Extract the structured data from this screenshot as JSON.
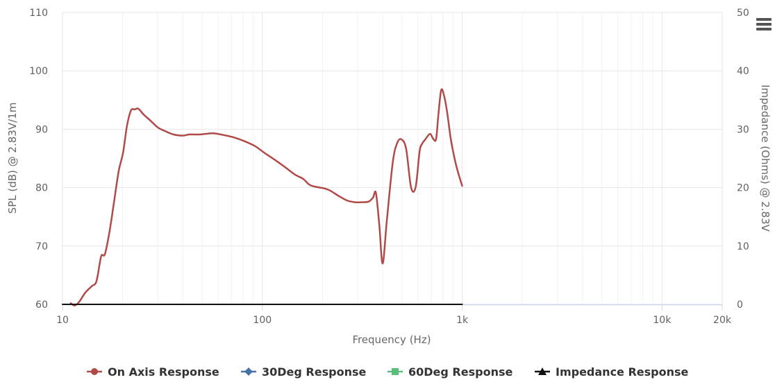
{
  "chart_data": {
    "type": "line",
    "xlabel": "Frequency (Hz)",
    "ylabel": "SPL (dB) @ 2.83V/1m",
    "y2label": "Impedance (Ohms) @ 2.83V",
    "xscale": "log",
    "xlim": [
      10,
      20000
    ],
    "ylim": [
      60,
      110
    ],
    "y2lim": [
      0,
      50
    ],
    "grid": true,
    "legend_position": "bottom-center",
    "x_ticks": [
      {
        "value": 10,
        "label": "10"
      },
      {
        "value": 100,
        "label": "100"
      },
      {
        "value": 1000,
        "label": "1k"
      },
      {
        "value": 10000,
        "label": "10k"
      },
      {
        "value": 20000,
        "label": "20k"
      }
    ],
    "y_ticks": [
      {
        "value": 60,
        "label": "60"
      },
      {
        "value": 70,
        "label": "70"
      },
      {
        "value": 80,
        "label": "80"
      },
      {
        "value": 90,
        "label": "90"
      },
      {
        "value": 100,
        "label": "100"
      },
      {
        "value": 110,
        "label": "110"
      }
    ],
    "y2_ticks": [
      {
        "value": 0,
        "label": "0"
      },
      {
        "value": 10,
        "label": "10"
      },
      {
        "value": 20,
        "label": "20"
      },
      {
        "value": 30,
        "label": "30"
      },
      {
        "value": 40,
        "label": "40"
      },
      {
        "value": 50,
        "label": "50"
      }
    ],
    "series": [
      {
        "name": "On Axis Response",
        "color": "#b04a48",
        "marker": "circle",
        "axis": "left",
        "x": [
          11,
          11.5,
          12.1,
          13,
          14,
          14.8,
          15.6,
          16.3,
          17.2,
          18.1,
          19.1,
          20.1,
          21,
          22,
          23,
          24,
          25.5,
          27.5,
          30,
          33,
          36,
          40,
          43,
          48,
          52,
          57,
          64,
          72,
          82,
          92,
          102,
          115,
          130,
          146,
          160,
          172,
          187,
          202,
          218,
          240,
          265,
          290,
          315,
          340,
          358,
          370,
          385,
          400,
          420,
          450,
          475,
          500,
          525,
          555,
          585,
          612,
          630,
          655,
          690,
          715,
          740,
          760,
          785,
          812,
          840,
          880,
          930,
          975,
          1000
        ],
        "values": [
          60.2,
          59.8,
          60.4,
          62,
          63.1,
          64,
          68.2,
          68.6,
          72.5,
          77.5,
          82.8,
          86,
          90.5,
          93.2,
          93.4,
          93.5,
          92.5,
          91.5,
          90.3,
          89.6,
          89.1,
          88.9,
          89.1,
          89.1,
          89.2,
          89.3,
          89,
          88.6,
          87.9,
          87.1,
          86,
          84.8,
          83.5,
          82.2,
          81.5,
          80.5,
          80.1,
          79.9,
          79.5,
          78.6,
          77.8,
          77.5,
          77.5,
          77.6,
          78.3,
          79.1,
          73.5,
          67,
          74.5,
          84.5,
          87.8,
          88.2,
          86.5,
          80,
          80.1,
          86.2,
          87.5,
          88.3,
          89.2,
          88.4,
          88.3,
          92.5,
          96.7,
          95.7,
          93,
          88,
          84,
          81.5,
          80.3
        ]
      },
      {
        "name": "30Deg Response",
        "color": "#4572a7",
        "marker": "diamond",
        "axis": "left",
        "x": [],
        "values": []
      },
      {
        "name": "60Deg Response",
        "color": "#5cbd7a",
        "marker": "square",
        "axis": "left",
        "x": [],
        "values": []
      },
      {
        "name": "Impedance Response",
        "color": "#111111",
        "marker": "triangle",
        "axis": "right",
        "x": [
          10,
          1000
        ],
        "values": [
          0,
          0
        ]
      }
    ]
  },
  "toolbar": {
    "menu_icon": "hamburger-menu-icon"
  }
}
